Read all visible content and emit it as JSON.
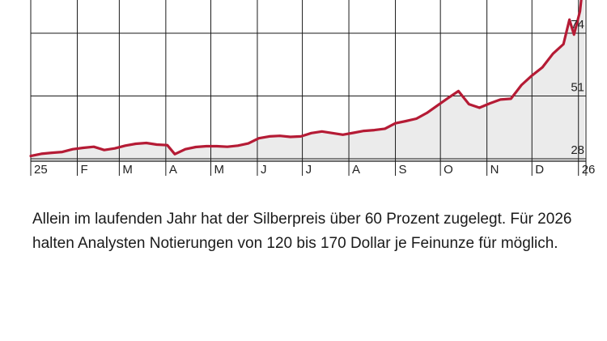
{
  "chart_data": {
    "type": "area",
    "x_tick_labels": [
      "25",
      "F",
      "M",
      "A",
      "M",
      "J",
      "J",
      "A",
      "S",
      "O",
      "N",
      "D",
      "26"
    ],
    "y_ticks": [
      28,
      51,
      74
    ],
    "ylim": [
      28,
      97
    ],
    "grid": true,
    "colors": {
      "line": "#b51b35",
      "fill": "#ebebeb",
      "grid": "#1a1a1a"
    },
    "series": [
      {
        "x": [
          "2025-01-01",
          "2025-01-08",
          "2025-01-15",
          "2025-01-22",
          "2025-01-29",
          "2025-02-05",
          "2025-02-12",
          "2025-02-19",
          "2025-02-26",
          "2025-03-05",
          "2025-03-12",
          "2025-03-19",
          "2025-03-26",
          "2025-04-02",
          "2025-04-07",
          "2025-04-14",
          "2025-04-21",
          "2025-04-28",
          "2025-05-05",
          "2025-05-12",
          "2025-05-19",
          "2025-05-26",
          "2025-06-02",
          "2025-06-09",
          "2025-06-16",
          "2025-06-23",
          "2025-06-30",
          "2025-07-07",
          "2025-07-14",
          "2025-07-21",
          "2025-07-28",
          "2025-08-04",
          "2025-08-11",
          "2025-08-18",
          "2025-08-25",
          "2025-09-01",
          "2025-09-08",
          "2025-09-15",
          "2025-09-22",
          "2025-09-29",
          "2025-10-06",
          "2025-10-13",
          "2025-10-20",
          "2025-10-27",
          "2025-11-03",
          "2025-11-10",
          "2025-11-17",
          "2025-11-24",
          "2025-12-01",
          "2025-12-08",
          "2025-12-15",
          "2025-12-22",
          "2025-12-26",
          "2025-12-29",
          "2026-01-02",
          "2026-01-05"
        ],
        "values": [
          29.0,
          29.8,
          30.2,
          30.5,
          31.5,
          32.0,
          32.4,
          31.2,
          31.8,
          32.8,
          33.5,
          33.8,
          33.2,
          33.0,
          29.7,
          31.5,
          32.3,
          32.6,
          32.6,
          32.4,
          32.8,
          33.6,
          35.5,
          36.2,
          36.4,
          36.0,
          36.2,
          37.4,
          38.0,
          37.4,
          36.8,
          37.5,
          38.2,
          38.5,
          39.0,
          41.0,
          41.8,
          42.7,
          44.8,
          47.5,
          50.2,
          52.8,
          48.0,
          46.7,
          48.3,
          49.7,
          50.0,
          55.0,
          58.5,
          61.5,
          66.5,
          70.0,
          79.0,
          73.5,
          82.0,
          97.0
        ]
      }
    ]
  },
  "caption": "Allein im laufenden Jahr hat der Silberpreis über 60 Prozent zugelegt. Für 2026 halten Analysten Notierungen von 120 bis 170 Dollar je Feinunze für möglich."
}
